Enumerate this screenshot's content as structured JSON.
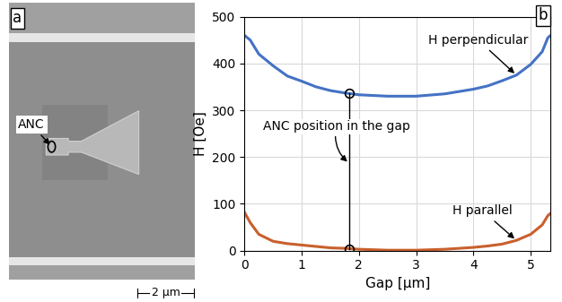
{
  "panel_a": {
    "label": "a",
    "marker_label": "ANC",
    "scale_bar": "2 µm"
  },
  "chart_data": {
    "type": "line",
    "label": "b",
    "xlabel": "Gap [µm]",
    "ylabel": "H [Oe]",
    "xlim": [
      0,
      5.35
    ],
    "ylim": [
      0,
      500
    ],
    "xticks": [
      0,
      1,
      2,
      3,
      4,
      5
    ],
    "yticks": [
      0,
      100,
      200,
      300,
      400,
      500
    ],
    "grid": true,
    "x": [
      0,
      0.1,
      0.25,
      0.5,
      0.75,
      1.0,
      1.25,
      1.5,
      1.75,
      2.0,
      2.5,
      3.0,
      3.5,
      4.0,
      4.25,
      4.5,
      4.75,
      5.0,
      5.2,
      5.3,
      5.35
    ],
    "series": [
      {
        "name": "H perpendicular",
        "color": "#4472c4",
        "values": [
          460,
          450,
          420,
          395,
          373,
          362,
          350,
          342,
          337,
          333,
          330,
          330,
          335,
          345,
          352,
          363,
          375,
          398,
          425,
          455,
          460
        ]
      },
      {
        "name": "H parallel",
        "color": "#c8602d",
        "values": [
          82,
          60,
          35,
          20,
          15,
          12,
          9,
          6,
          5,
          3,
          1,
          1,
          3,
          7,
          10,
          14,
          22,
          35,
          55,
          75,
          80
        ]
      }
    ],
    "annotations": [
      {
        "text": "ANC position in the gap",
        "x": 1.83,
        "points": [
          336,
          3
        ]
      }
    ]
  }
}
